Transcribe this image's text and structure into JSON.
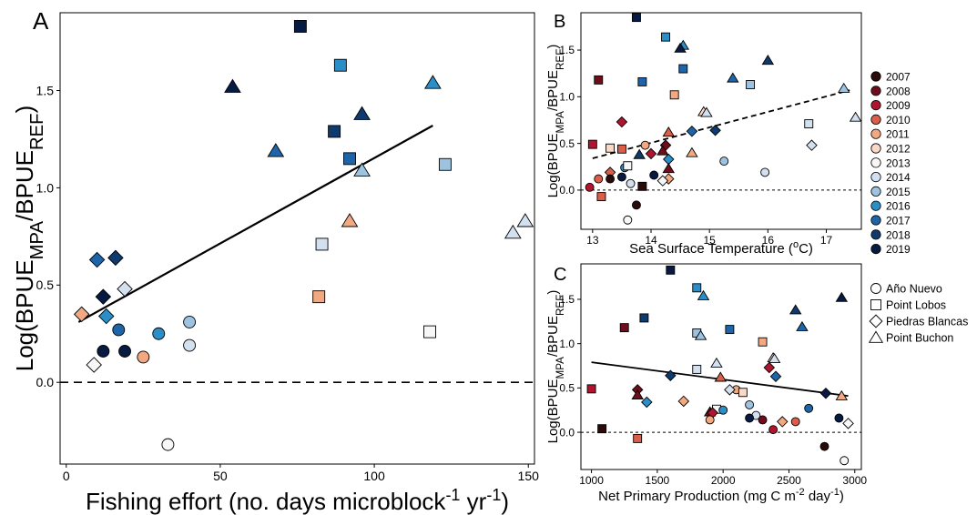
{
  "colors": {
    "2007": "#2b0a0a",
    "2008": "#6e0d1c",
    "2009": "#b01530",
    "2010": "#d95f4a",
    "2011": "#f2a880",
    "2012": "#fbd9c6",
    "2013": "#f7f7f7",
    "2014": "#d2e0ef",
    "2015": "#9ec3e0",
    "2016": "#2b8ec6",
    "2017": "#1e64a8",
    "2018": "#0e3a6e",
    "2019": "#071a42"
  },
  "shape_icons": {
    "Año Nuevo": "circle",
    "Point Lobos": "square",
    "Piedras Blancas": "diamond",
    "Point Buchon": "triangle"
  },
  "legend": {
    "years": [
      "2007",
      "2008",
      "2009",
      "2010",
      "2011",
      "2012",
      "2013",
      "2014",
      "2015",
      "2016",
      "2017",
      "2018",
      "2019"
    ],
    "sites": [
      "Año Nuevo",
      "Point Lobos",
      "Piedras Blancas",
      "Point Buchon"
    ]
  },
  "chart_data": [
    {
      "panel": "A",
      "type": "scatter",
      "xlabel": {
        "base": "Fishing effort (no. days microblock",
        "sup1": "-1",
        "mid": " yr",
        "sup2": "-1",
        "end": ")"
      },
      "ylabel": {
        "base": "Log(BPUE",
        "sub1": "MPA",
        "mid": "/BPUE",
        "sub2": "REF",
        "end": ")"
      },
      "xlim": [
        -2,
        152
      ],
      "ylim": [
        -0.42,
        1.9
      ],
      "xticks": [
        0,
        50,
        100,
        150
      ],
      "yticks": [
        0.0,
        0.5,
        1.0,
        1.5
      ],
      "fit": {
        "x": [
          4,
          119
        ],
        "y": [
          0.31,
          1.32
        ],
        "style": "solid"
      },
      "ref_line": {
        "y": 0,
        "style": "dashed"
      },
      "points": [
        {
          "x": 76,
          "y": 1.83,
          "shape": "square",
          "year": "2019"
        },
        {
          "x": 89,
          "y": 1.63,
          "shape": "square",
          "year": "2016"
        },
        {
          "x": 54,
          "y": 1.52,
          "shape": "triangle",
          "year": "2019"
        },
        {
          "x": 119,
          "y": 1.54,
          "shape": "triangle",
          "year": "2016"
        },
        {
          "x": 96,
          "y": 1.38,
          "shape": "triangle",
          "year": "2018"
        },
        {
          "x": 87,
          "y": 1.29,
          "shape": "square",
          "year": "2018"
        },
        {
          "x": 68,
          "y": 1.19,
          "shape": "triangle",
          "year": "2017"
        },
        {
          "x": 92,
          "y": 1.15,
          "shape": "square",
          "year": "2017"
        },
        {
          "x": 123,
          "y": 1.12,
          "shape": "square",
          "year": "2015"
        },
        {
          "x": 96,
          "y": 1.09,
          "shape": "triangle",
          "year": "2015"
        },
        {
          "x": 92,
          "y": 0.83,
          "shape": "triangle",
          "year": "2011"
        },
        {
          "x": 149,
          "y": 0.83,
          "shape": "triangle",
          "year": "2014"
        },
        {
          "x": 145,
          "y": 0.77,
          "shape": "triangle",
          "year": "2014"
        },
        {
          "x": 83,
          "y": 0.71,
          "shape": "square",
          "year": "2014"
        },
        {
          "x": 10,
          "y": 0.63,
          "shape": "diamond",
          "year": "2017"
        },
        {
          "x": 16,
          "y": 0.64,
          "shape": "diamond",
          "year": "2018"
        },
        {
          "x": 19,
          "y": 0.48,
          "shape": "diamond",
          "year": "2014"
        },
        {
          "x": 82,
          "y": 0.44,
          "shape": "square",
          "year": "2011"
        },
        {
          "x": 12,
          "y": 0.44,
          "shape": "diamond",
          "year": "2019"
        },
        {
          "x": 5,
          "y": 0.35,
          "shape": "diamond",
          "year": "2011"
        },
        {
          "x": 13,
          "y": 0.34,
          "shape": "diamond",
          "year": "2016"
        },
        {
          "x": 40,
          "y": 0.31,
          "shape": "circle",
          "year": "2015"
        },
        {
          "x": 17,
          "y": 0.27,
          "shape": "circle",
          "year": "2017"
        },
        {
          "x": 118,
          "y": 0.26,
          "shape": "square",
          "year": "2013"
        },
        {
          "x": 30,
          "y": 0.25,
          "shape": "circle",
          "year": "2016"
        },
        {
          "x": 40,
          "y": 0.19,
          "shape": "circle",
          "year": "2014"
        },
        {
          "x": 12,
          "y": 0.16,
          "shape": "circle",
          "year": "2019"
        },
        {
          "x": 19,
          "y": 0.16,
          "shape": "circle",
          "year": "2019"
        },
        {
          "x": 25,
          "y": 0.13,
          "shape": "circle",
          "year": "2011"
        },
        {
          "x": 9,
          "y": 0.09,
          "shape": "diamond",
          "year": "2013"
        },
        {
          "x": 33,
          "y": -0.32,
          "shape": "circle",
          "year": "2013"
        }
      ]
    },
    {
      "panel": "B",
      "type": "scatter",
      "xlabel": {
        "base": "Sea Surface Temperature (",
        "sup1": "o",
        "mid": "C)",
        "sup2": "",
        "end": ""
      },
      "ylabel": {
        "base": "Log(BPUE",
        "sub1": "MPA",
        "mid": "/BPUE",
        "sub2": "REF",
        "end": ")"
      },
      "xlim": [
        12.8,
        17.6
      ],
      "ylim": [
        -0.42,
        1.9
      ],
      "xticks": [
        13,
        14,
        15,
        16,
        17
      ],
      "yticks": [
        0.0,
        0.5,
        1.0,
        1.5
      ],
      "fit": {
        "x": [
          13,
          17.4
        ],
        "y": [
          0.34,
          1.07
        ],
        "style": "dashed"
      },
      "ref_line": {
        "y": 0,
        "style": "dotted"
      },
      "points": [
        {
          "x": 13.75,
          "y": 1.85,
          "shape": "square",
          "year": "2019"
        },
        {
          "x": 14.25,
          "y": 1.64,
          "shape": "square",
          "year": "2016"
        },
        {
          "x": 14.55,
          "y": 1.55,
          "shape": "triangle",
          "year": "2016"
        },
        {
          "x": 14.5,
          "y": 1.52,
          "shape": "triangle",
          "year": "2019"
        },
        {
          "x": 14.55,
          "y": 1.3,
          "shape": "square",
          "year": "2017"
        },
        {
          "x": 16,
          "y": 1.39,
          "shape": "triangle",
          "year": "2018"
        },
        {
          "x": 15.4,
          "y": 1.2,
          "shape": "triangle",
          "year": "2017"
        },
        {
          "x": 13.1,
          "y": 1.18,
          "shape": "square",
          "year": "2008"
        },
        {
          "x": 13.85,
          "y": 1.16,
          "shape": "square",
          "year": "2017"
        },
        {
          "x": 15.7,
          "y": 1.13,
          "shape": "square",
          "year": "2015"
        },
        {
          "x": 17.3,
          "y": 1.09,
          "shape": "triangle",
          "year": "2015"
        },
        {
          "x": 14.4,
          "y": 1.02,
          "shape": "square",
          "year": "2011"
        },
        {
          "x": 14.9,
          "y": 0.84,
          "shape": "triangle",
          "year": "2012"
        },
        {
          "x": 14.95,
          "y": 0.83,
          "shape": "triangle",
          "year": "2014"
        },
        {
          "x": 17.5,
          "y": 0.78,
          "shape": "triangle",
          "year": "2014"
        },
        {
          "x": 13.5,
          "y": 0.73,
          "shape": "diamond",
          "year": "2009"
        },
        {
          "x": 16.7,
          "y": 0.71,
          "shape": "square",
          "year": "2014"
        },
        {
          "x": 15.1,
          "y": 0.64,
          "shape": "diamond",
          "year": "2018"
        },
        {
          "x": 14.7,
          "y": 0.63,
          "shape": "diamond",
          "year": "2017"
        },
        {
          "x": 14.3,
          "y": 0.62,
          "shape": "triangle",
          "year": "2010"
        },
        {
          "x": 13.0,
          "y": 0.49,
          "shape": "square",
          "year": "2009"
        },
        {
          "x": 13.9,
          "y": 0.48,
          "shape": "circle",
          "year": "2011"
        },
        {
          "x": 16.75,
          "y": 0.48,
          "shape": "diamond",
          "year": "2014"
        },
        {
          "x": 14.25,
          "y": 0.48,
          "shape": "diamond",
          "year": "2008"
        },
        {
          "x": 13.3,
          "y": 0.45,
          "shape": "square",
          "year": "2012"
        },
        {
          "x": 13.5,
          "y": 0.44,
          "shape": "square",
          "year": "2010"
        },
        {
          "x": 14.2,
          "y": 0.42,
          "shape": "triangle",
          "year": "2008"
        },
        {
          "x": 14.0,
          "y": 0.39,
          "shape": "diamond",
          "year": "2009"
        },
        {
          "x": 13.8,
          "y": 0.38,
          "shape": "triangle",
          "year": "2018"
        },
        {
          "x": 14.7,
          "y": 0.4,
          "shape": "triangle",
          "year": "2011"
        },
        {
          "x": 14.3,
          "y": 0.33,
          "shape": "diamond",
          "year": "2016"
        },
        {
          "x": 15.25,
          "y": 0.31,
          "shape": "circle",
          "year": "2015"
        },
        {
          "x": 13.55,
          "y": 0.24,
          "shape": "circle",
          "year": "2016"
        },
        {
          "x": 14.3,
          "y": 0.23,
          "shape": "triangle",
          "year": "2008"
        },
        {
          "x": 13.6,
          "y": 0.26,
          "shape": "square",
          "year": "2013"
        },
        {
          "x": 15.95,
          "y": 0.19,
          "shape": "circle",
          "year": "2014"
        },
        {
          "x": 13.3,
          "y": 0.19,
          "shape": "diamond",
          "year": "2010"
        },
        {
          "x": 14.05,
          "y": 0.16,
          "shape": "circle",
          "year": "2019"
        },
        {
          "x": 13.5,
          "y": 0.14,
          "shape": "circle",
          "year": "2019"
        },
        {
          "x": 13.3,
          "y": 0.12,
          "shape": "circle",
          "year": "2007"
        },
        {
          "x": 14.3,
          "y": 0.12,
          "shape": "diamond",
          "year": "2011"
        },
        {
          "x": 13.1,
          "y": 0.12,
          "shape": "circle",
          "year": "2010"
        },
        {
          "x": 14.2,
          "y": 0.1,
          "shape": "diamond",
          "year": "2013"
        },
        {
          "x": 13.65,
          "y": 0.07,
          "shape": "circle",
          "year": "2014"
        },
        {
          "x": 13.85,
          "y": 0.04,
          "shape": "square",
          "year": "2007"
        },
        {
          "x": 12.95,
          "y": 0.03,
          "shape": "circle",
          "year": "2009"
        },
        {
          "x": 13.15,
          "y": -0.07,
          "shape": "square",
          "year": "2010"
        },
        {
          "x": 13.75,
          "y": -0.16,
          "shape": "circle",
          "year": "2007"
        },
        {
          "x": 13.6,
          "y": -0.32,
          "shape": "circle",
          "year": "2013"
        }
      ]
    },
    {
      "panel": "C",
      "type": "scatter",
      "xlabel": {
        "base": "Net Primary Production (mg C m",
        "sup1": "-2",
        "mid": " day",
        "sup2": "-1",
        "end": ")"
      },
      "ylabel": {
        "base": "Log(BPUE",
        "sub1": "MPA",
        "mid": "/BPUE",
        "sub2": "REF",
        "end": ")"
      },
      "xlim": [
        920,
        3050
      ],
      "ylim": [
        -0.42,
        1.9
      ],
      "xticks": [
        1000,
        1500,
        2000,
        2500,
        3000
      ],
      "yticks": [
        0.0,
        0.5,
        1.0,
        1.5
      ],
      "fit": {
        "x": [
          1000,
          2950
        ],
        "y": [
          0.79,
          0.41
        ],
        "style": "solid"
      },
      "ref_line": {
        "y": 0,
        "style": "dotted"
      },
      "points": [
        {
          "x": 1600,
          "y": 1.83,
          "shape": "square",
          "year": "2019"
        },
        {
          "x": 1800,
          "y": 1.63,
          "shape": "square",
          "year": "2016"
        },
        {
          "x": 1850,
          "y": 1.54,
          "shape": "triangle",
          "year": "2016"
        },
        {
          "x": 2900,
          "y": 1.52,
          "shape": "triangle",
          "year": "2019"
        },
        {
          "x": 2550,
          "y": 1.38,
          "shape": "triangle",
          "year": "2018"
        },
        {
          "x": 1400,
          "y": 1.29,
          "shape": "square",
          "year": "2018"
        },
        {
          "x": 2600,
          "y": 1.19,
          "shape": "triangle",
          "year": "2017"
        },
        {
          "x": 1250,
          "y": 1.18,
          "shape": "square",
          "year": "2008"
        },
        {
          "x": 2050,
          "y": 1.16,
          "shape": "square",
          "year": "2017"
        },
        {
          "x": 1800,
          "y": 1.12,
          "shape": "square",
          "year": "2015"
        },
        {
          "x": 1830,
          "y": 1.09,
          "shape": "triangle",
          "year": "2015"
        },
        {
          "x": 2300,
          "y": 1.02,
          "shape": "square",
          "year": "2011"
        },
        {
          "x": 2380,
          "y": 0.84,
          "shape": "triangle",
          "year": "2012"
        },
        {
          "x": 2390,
          "y": 0.83,
          "shape": "triangle",
          "year": "2014"
        },
        {
          "x": 1950,
          "y": 0.78,
          "shape": "triangle",
          "year": "2014"
        },
        {
          "x": 2350,
          "y": 0.73,
          "shape": "diamond",
          "year": "2009"
        },
        {
          "x": 1800,
          "y": 0.71,
          "shape": "square",
          "year": "2014"
        },
        {
          "x": 1600,
          "y": 0.64,
          "shape": "diamond",
          "year": "2018"
        },
        {
          "x": 2400,
          "y": 0.63,
          "shape": "diamond",
          "year": "2017"
        },
        {
          "x": 1980,
          "y": 0.62,
          "shape": "triangle",
          "year": "2010"
        },
        {
          "x": 1000,
          "y": 0.49,
          "shape": "square",
          "year": "2009"
        },
        {
          "x": 2100,
          "y": 0.48,
          "shape": "circle",
          "year": "2011"
        },
        {
          "x": 2050,
          "y": 0.48,
          "shape": "diamond",
          "year": "2014"
        },
        {
          "x": 1350,
          "y": 0.48,
          "shape": "diamond",
          "year": "2008"
        },
        {
          "x": 2150,
          "y": 0.45,
          "shape": "square",
          "year": "2012"
        },
        {
          "x": 2780,
          "y": 0.44,
          "shape": "diamond",
          "year": "2019"
        },
        {
          "x": 2900,
          "y": 0.41,
          "shape": "triangle",
          "year": "2011"
        },
        {
          "x": 1350,
          "y": 0.42,
          "shape": "triangle",
          "year": "2008"
        },
        {
          "x": 1700,
          "y": 0.35,
          "shape": "diamond",
          "year": "2011"
        },
        {
          "x": 1420,
          "y": 0.34,
          "shape": "diamond",
          "year": "2016"
        },
        {
          "x": 2200,
          "y": 0.31,
          "shape": "circle",
          "year": "2015"
        },
        {
          "x": 2650,
          "y": 0.27,
          "shape": "circle",
          "year": "2017"
        },
        {
          "x": 1950,
          "y": 0.26,
          "shape": "square",
          "year": "2013"
        },
        {
          "x": 2000,
          "y": 0.25,
          "shape": "circle",
          "year": "2016"
        },
        {
          "x": 1900,
          "y": 0.23,
          "shape": "triangle",
          "year": "2008"
        },
        {
          "x": 1920,
          "y": 0.22,
          "shape": "diamond",
          "year": "2009"
        },
        {
          "x": 2250,
          "y": 0.19,
          "shape": "circle",
          "year": "2014"
        },
        {
          "x": 2200,
          "y": 0.16,
          "shape": "circle",
          "year": "2019"
        },
        {
          "x": 2880,
          "y": 0.16,
          "shape": "circle",
          "year": "2019"
        },
        {
          "x": 1900,
          "y": 0.14,
          "shape": "circle",
          "year": "2011"
        },
        {
          "x": 2300,
          "y": 0.14,
          "shape": "circle",
          "year": "2008"
        },
        {
          "x": 2450,
          "y": 0.12,
          "shape": "diamond",
          "year": "2011"
        },
        {
          "x": 2550,
          "y": 0.12,
          "shape": "circle",
          "year": "2010"
        },
        {
          "x": 2950,
          "y": 0.1,
          "shape": "diamond",
          "year": "2013"
        },
        {
          "x": 1080,
          "y": 0.04,
          "shape": "square",
          "year": "2007"
        },
        {
          "x": 2380,
          "y": 0.03,
          "shape": "circle",
          "year": "2009"
        },
        {
          "x": 1350,
          "y": -0.07,
          "shape": "square",
          "year": "2010"
        },
        {
          "x": 2770,
          "y": -0.16,
          "shape": "circle",
          "year": "2007"
        },
        {
          "x": 2920,
          "y": -0.32,
          "shape": "circle",
          "year": "2013"
        }
      ]
    }
  ]
}
